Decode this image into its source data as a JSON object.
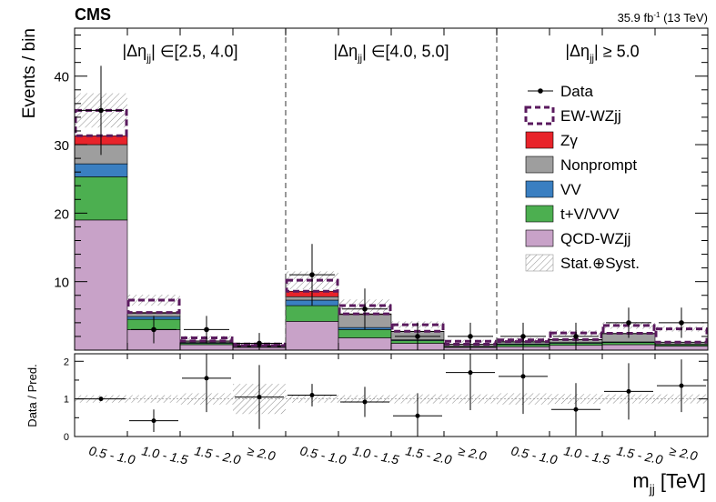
{
  "chart_data": {
    "type": "bar",
    "stacked": true,
    "experiment": "CMS",
    "lumi": "35.9 fb",
    "lumi_sup": "-1",
    "lumi_energy": " (13 TeV)",
    "ylabel": "Events / bin",
    "ratio_ylabel": "Data / Pred.",
    "xlabel_main": "m",
    "xlabel_sub": "jj",
    "xlabel_unit": " [TeV]",
    "ylim": [
      0,
      47
    ],
    "ratio_ylim": [
      0,
      2.2
    ],
    "y_ticks": [
      10,
      20,
      30,
      40
    ],
    "ratio_ticks": [
      0,
      1,
      2
    ],
    "region_labels": [
      {
        "pre": "|Δη",
        "sub": "jj",
        "post": "| ∈[2.5, 4.0]"
      },
      {
        "pre": "|Δη",
        "sub": "jj",
        "post": "| ∈[4.0, 5.0]"
      },
      {
        "pre": "|Δη",
        "sub": "jj",
        "post": "| ≥ 5.0"
      }
    ],
    "categories": [
      "0.5 - 1.0",
      "1.0 - 1.5",
      "1.5 - 2.0",
      "≥ 2.0",
      "0.5 - 1.0",
      "1.0 - 1.5",
      "1.5 - 2.0",
      "≥ 2.0",
      "0.5 - 1.0",
      "1.0 - 1.5",
      "1.5 - 2.0",
      "≥ 2.0"
    ],
    "series": [
      {
        "name": "QCD-WZjj",
        "color": "#c8a2c8",
        "values": [
          19.0,
          3.0,
          0.8,
          0.4,
          4.2,
          1.8,
          1.0,
          0.4,
          0.5,
          0.7,
          0.8,
          0.6
        ]
      },
      {
        "name": "t+V/VVV",
        "color": "#4caf50",
        "values": [
          6.3,
          1.5,
          0.2,
          0.1,
          2.3,
          1.2,
          0.4,
          0.1,
          0.3,
          0.3,
          0.3,
          0.2
        ]
      },
      {
        "name": "VV",
        "color": "#3a7fc1",
        "values": [
          1.9,
          0.4,
          0.1,
          0.05,
          0.8,
          0.3,
          0.1,
          0.05,
          0.1,
          0.1,
          0.1,
          0.05
        ]
      },
      {
        "name": "Nonprompt",
        "color": "#9e9e9e",
        "values": [
          2.8,
          0.5,
          0.2,
          0.1,
          0.5,
          1.9,
          1.2,
          0.3,
          0.3,
          0.4,
          1.2,
          0.3
        ]
      },
      {
        "name": "Zγ",
        "color": "#e8232a",
        "values": [
          1.3,
          0.1,
          0.05,
          0.02,
          0.8,
          0.1,
          0.05,
          0.02,
          0.05,
          0.05,
          0.05,
          0.02
        ]
      }
    ],
    "ew_total": [
      35.0,
      7.3,
      1.8,
      0.9,
      10.2,
      6.5,
      3.7,
      1.3,
      1.5,
      2.5,
      3.6,
      3.1
    ],
    "uncertainty": [
      2.5,
      0.8,
      0.3,
      0.2,
      1.3,
      0.9,
      0.5,
      0.2,
      0.3,
      0.4,
      0.5,
      0.4
    ],
    "data": [
      {
        "y": 35,
        "err": 6.5
      },
      {
        "y": 3,
        "err": 2.0
      },
      {
        "y": 3,
        "err": 2.0
      },
      {
        "y": 1,
        "err": 1.5
      },
      {
        "y": 11,
        "err": 4.5
      },
      {
        "y": 6,
        "err": 3.0
      },
      {
        "y": 2,
        "err": 2.0
      },
      {
        "y": 2,
        "err": 2.0
      },
      {
        "y": 2,
        "err": 2.0
      },
      {
        "y": 2,
        "err": 2.0
      },
      {
        "y": 4,
        "err": 2.2
      },
      {
        "y": 4,
        "err": 2.2
      }
    ],
    "ratio": [
      {
        "y": 1.0,
        "err": 0.05
      },
      {
        "y": 0.42,
        "err": 0.3
      },
      {
        "y": 1.55,
        "err": 0.9
      },
      {
        "y": 1.05,
        "err": 0.85
      },
      {
        "y": 1.1,
        "err": 0.3
      },
      {
        "y": 0.92,
        "err": 0.4
      },
      {
        "y": 0.55,
        "err": 0.6
      },
      {
        "y": 1.7,
        "err": 1.0
      },
      {
        "y": 1.6,
        "err": 1.0
      },
      {
        "y": 0.72,
        "err": 0.7
      },
      {
        "y": 1.2,
        "err": 0.75
      },
      {
        "y": 1.35,
        "err": 0.7
      }
    ],
    "ratio_band": [
      0.1,
      0.1,
      0.15,
      0.4,
      0.1,
      0.1,
      0.12,
      0.12,
      0.15,
      0.13,
      0.12,
      0.12
    ],
    "legend": [
      {
        "label": "Data",
        "kind": "data"
      },
      {
        "label": "EW-WZjj",
        "kind": "dashed",
        "color": "#5a1a5e"
      },
      {
        "label": "Zγ",
        "kind": "fill",
        "color": "#e8232a"
      },
      {
        "label": "Nonprompt",
        "kind": "fill",
        "color": "#9e9e9e"
      },
      {
        "label": "VV",
        "kind": "fill",
        "color": "#3a7fc1"
      },
      {
        "label": "t+V/VVV",
        "kind": "fill",
        "color": "#4caf50"
      },
      {
        "label": "QCD-WZjj",
        "kind": "fill",
        "color": "#c8a2c8"
      },
      {
        "label": "Stat.⊕Syst.",
        "kind": "hatch"
      }
    ],
    "legend_position": "right",
    "ew_color": "#5a1a5e"
  }
}
